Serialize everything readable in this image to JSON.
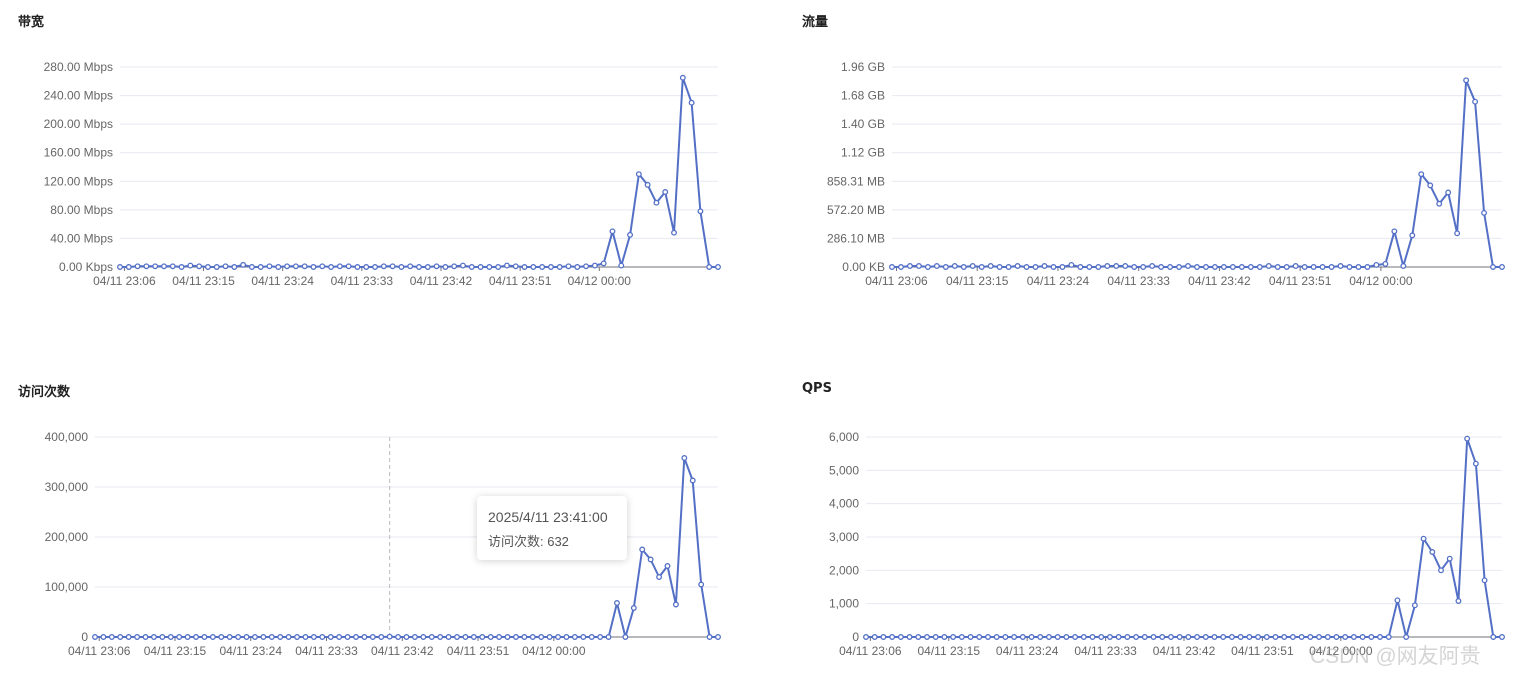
{
  "page": {
    "watermark": "CSDN @网友阿贵",
    "colors": {
      "line": "#5470c6",
      "grid": "#e6e9f0",
      "axis": "#6e7079",
      "pointer": "#bbbbbb"
    }
  },
  "tooltip": {
    "time": "2025/4/11 23:41:00",
    "label": "访问次数: 632"
  },
  "chart_data": [
    {
      "type": "line",
      "title": "带宽",
      "grid": true,
      "ylim": [
        0,
        280
      ],
      "yticks": [
        "0.00 Kbps",
        "40.00 Mbps",
        "80.00 Mbps",
        "120.00 Mbps",
        "160.00 Mbps",
        "200.00 Mbps",
        "240.00 Mbps",
        "280.00 Mbps"
      ],
      "xticks": [
        "04/11 23:06",
        "04/11 23:15",
        "04/11 23:24",
        "04/11 23:33",
        "04/11 23:42",
        "04/11 23:51",
        "04/12 00:00"
      ],
      "x_start_minute": 0,
      "values": [
        0,
        0,
        1,
        1,
        1,
        1,
        1,
        0,
        2,
        1,
        0,
        0,
        1,
        0,
        3,
        0,
        0,
        1,
        0,
        1,
        1,
        1,
        0,
        1,
        0,
        1,
        1,
        0,
        0,
        0,
        1,
        1,
        0,
        1,
        0,
        0,
        1,
        0,
        1,
        2,
        0,
        0,
        0,
        0,
        2,
        1,
        0,
        0,
        0,
        0,
        0,
        1,
        0,
        1,
        2,
        5,
        50,
        2,
        45,
        130,
        115,
        90,
        105,
        48,
        265,
        230,
        78,
        0,
        0
      ]
    },
    {
      "type": "line",
      "title": "流量",
      "grid": true,
      "ylim": [
        0,
        1.96
      ],
      "yticks": [
        "0.00 KB",
        "286.10 MB",
        "572.20 MB",
        "858.31 MB",
        "1.12 GB",
        "1.40 GB",
        "1.68 GB",
        "1.96 GB"
      ],
      "xticks": [
        "04/11 23:06",
        "04/11 23:15",
        "04/11 23:24",
        "04/11 23:33",
        "04/11 23:42",
        "04/11 23:51",
        "04/12 00:00"
      ],
      "values": [
        0,
        0,
        0.01,
        0.01,
        0,
        0.01,
        0,
        0.01,
        0,
        0.01,
        0,
        0.01,
        0,
        0,
        0.01,
        0,
        0,
        0.01,
        0,
        0,
        0.02,
        0,
        0,
        0,
        0.01,
        0.01,
        0.01,
        0,
        0,
        0.01,
        0,
        0,
        0,
        0.01,
        0,
        0,
        0,
        0,
        0,
        0,
        0,
        0,
        0.01,
        0,
        0,
        0.01,
        0,
        0,
        0,
        0,
        0.01,
        0,
        0,
        0,
        0.02,
        0.03,
        0.35,
        0.01,
        0.31,
        0.91,
        0.8,
        0.62,
        0.73,
        0.33,
        1.83,
        1.62,
        0.53,
        0,
        0
      ]
    },
    {
      "type": "line",
      "title": "访问次数",
      "grid": true,
      "ylim": [
        0,
        400000
      ],
      "yticks": [
        "0",
        "100,000",
        "200,000",
        "300,000",
        "400,000"
      ],
      "xticks": [
        "04/11 23:06",
        "04/11 23:15",
        "04/11 23:24",
        "04/11 23:33",
        "04/11 23:42",
        "04/11 23:51",
        "04/12 00:00"
      ],
      "pointer_x": "04/11 23:41",
      "values": [
        0,
        0,
        0,
        0,
        0,
        0,
        0,
        0,
        0,
        0,
        0,
        0,
        0,
        0,
        0,
        0,
        0,
        0,
        0,
        0,
        0,
        0,
        0,
        0,
        0,
        0,
        0,
        0,
        0,
        0,
        0,
        0,
        0,
        0,
        0,
        632,
        0,
        0,
        0,
        0,
        0,
        0,
        0,
        0,
        0,
        0,
        0,
        0,
        0,
        0,
        0,
        0,
        0,
        0,
        0,
        0,
        0,
        0,
        0,
        0,
        0,
        0,
        68000,
        0,
        58000,
        175000,
        155000,
        120000,
        142000,
        65000,
        358000,
        313000,
        105000,
        0,
        0
      ]
    },
    {
      "type": "line",
      "title": "QPS",
      "grid": true,
      "ylim": [
        0,
        6000
      ],
      "yticks": [
        "0",
        "1,000",
        "2,000",
        "3,000",
        "4,000",
        "5,000",
        "6,000"
      ],
      "xticks": [
        "04/11 23:06",
        "04/11 23:15",
        "04/11 23:24",
        "04/11 23:33",
        "04/11 23:42",
        "04/11 23:51",
        "04/12 00:00"
      ],
      "values": [
        0,
        0,
        0,
        0,
        0,
        0,
        0,
        0,
        0,
        0,
        0,
        0,
        0,
        0,
        0,
        0,
        0,
        0,
        0,
        0,
        0,
        0,
        0,
        0,
        0,
        0,
        0,
        0,
        0,
        0,
        0,
        0,
        0,
        0,
        0,
        0,
        0,
        0,
        0,
        0,
        0,
        0,
        0,
        0,
        0,
        0,
        0,
        0,
        0,
        0,
        0,
        0,
        0,
        0,
        0,
        0,
        0,
        0,
        0,
        0,
        0,
        1100,
        0,
        950,
        2950,
        2550,
        2000,
        2350,
        1080,
        5950,
        5200,
        1700,
        0,
        0
      ]
    }
  ]
}
